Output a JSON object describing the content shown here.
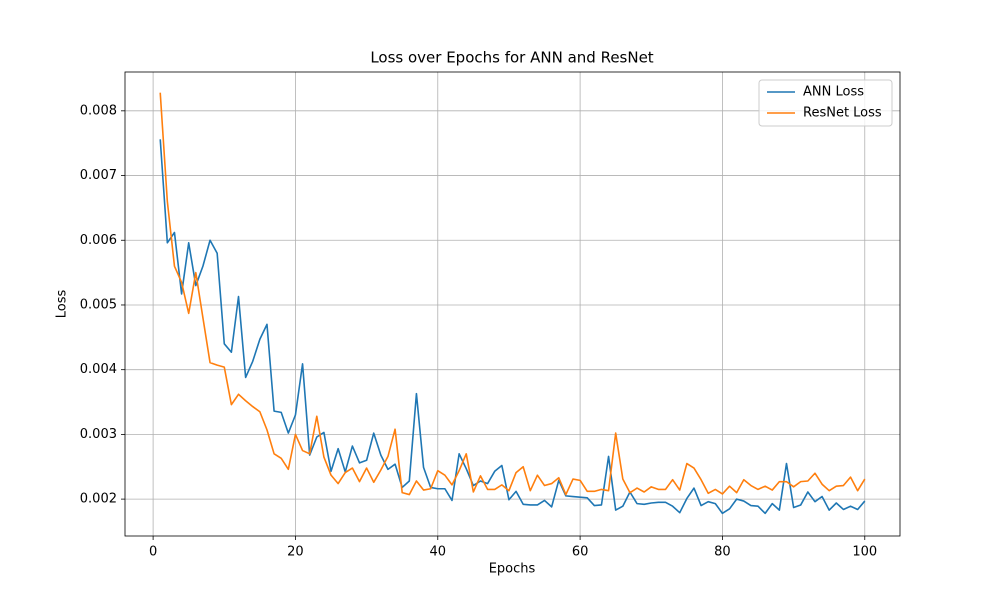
{
  "chart_data": {
    "type": "line",
    "title": "Loss over Epochs for ANN and ResNet",
    "x_label": "Epochs",
    "y_label": "Loss",
    "x": [
      1,
      2,
      3,
      4,
      5,
      6,
      7,
      8,
      9,
      10,
      11,
      12,
      13,
      14,
      15,
      16,
      17,
      18,
      19,
      20,
      21,
      22,
      23,
      24,
      25,
      26,
      27,
      28,
      29,
      30,
      31,
      32,
      33,
      34,
      35,
      36,
      37,
      38,
      39,
      40,
      41,
      42,
      43,
      44,
      45,
      46,
      47,
      48,
      49,
      50,
      51,
      52,
      53,
      54,
      55,
      56,
      57,
      58,
      59,
      60,
      61,
      62,
      63,
      64,
      65,
      66,
      67,
      68,
      69,
      70,
      71,
      72,
      73,
      74,
      75,
      76,
      77,
      78,
      79,
      80,
      81,
      82,
      83,
      84,
      85,
      86,
      87,
      88,
      89,
      90,
      91,
      92,
      93,
      94,
      95,
      96,
      97,
      98,
      99,
      100
    ],
    "series": [
      {
        "name": "ANN Loss",
        "color": "#1f77b4",
        "values": [
          0.00756,
          0.00596,
          0.00612,
          0.00517,
          0.00596,
          0.0053,
          0.0056,
          0.006,
          0.0058,
          0.0044,
          0.00427,
          0.00513,
          0.00388,
          0.00413,
          0.00447,
          0.0047,
          0.00336,
          0.00334,
          0.00302,
          0.0033,
          0.00409,
          0.00268,
          0.00296,
          0.00303,
          0.00243,
          0.00278,
          0.00242,
          0.00282,
          0.00256,
          0.0026,
          0.00302,
          0.00268,
          0.00246,
          0.00254,
          0.00218,
          0.00228,
          0.00363,
          0.00249,
          0.00218,
          0.00216,
          0.00216,
          0.00198,
          0.0027,
          0.00247,
          0.00221,
          0.00228,
          0.00224,
          0.00243,
          0.00252,
          0.00199,
          0.00212,
          0.00192,
          0.00191,
          0.00191,
          0.00198,
          0.00188,
          0.00229,
          0.00205,
          0.00204,
          0.00203,
          0.00202,
          0.0019,
          0.00191,
          0.00266,
          0.00183,
          0.00189,
          0.00211,
          0.00193,
          0.00192,
          0.00194,
          0.00195,
          0.00195,
          0.00189,
          0.00179,
          0.00201,
          0.00217,
          0.0019,
          0.00196,
          0.00193,
          0.00178,
          0.00185,
          0.002,
          0.00197,
          0.0019,
          0.00189,
          0.00178,
          0.00193,
          0.00183,
          0.00255,
          0.00187,
          0.00191,
          0.00211,
          0.00196,
          0.00204,
          0.00183,
          0.00194,
          0.00184,
          0.00189,
          0.00184,
          0.00197
        ]
      },
      {
        "name": "ResNet Loss",
        "color": "#ff7f0e",
        "values": [
          0.00828,
          0.0066,
          0.0056,
          0.00535,
          0.00487,
          0.0055,
          0.0048,
          0.00411,
          0.00407,
          0.00404,
          0.00346,
          0.00362,
          0.00352,
          0.00343,
          0.00335,
          0.00307,
          0.0027,
          0.00263,
          0.00246,
          0.003,
          0.00275,
          0.0027,
          0.00328,
          0.00265,
          0.00237,
          0.00224,
          0.00241,
          0.00248,
          0.00227,
          0.00248,
          0.00226,
          0.00245,
          0.00266,
          0.00308,
          0.0021,
          0.00207,
          0.00228,
          0.00214,
          0.00216,
          0.00244,
          0.00237,
          0.00222,
          0.00244,
          0.0027,
          0.00211,
          0.00236,
          0.00215,
          0.00215,
          0.00222,
          0.00213,
          0.00241,
          0.0025,
          0.00213,
          0.00237,
          0.00221,
          0.00224,
          0.00233,
          0.00207,
          0.00231,
          0.00229,
          0.00212,
          0.00212,
          0.00215,
          0.00213,
          0.00302,
          0.00231,
          0.0021,
          0.00217,
          0.00211,
          0.00219,
          0.00215,
          0.00215,
          0.0023,
          0.00214,
          0.00255,
          0.00248,
          0.0023,
          0.00209,
          0.00215,
          0.00208,
          0.0022,
          0.0021,
          0.0023,
          0.00221,
          0.00215,
          0.0022,
          0.00214,
          0.00227,
          0.00227,
          0.00219,
          0.00227,
          0.00228,
          0.0024,
          0.00223,
          0.00213,
          0.0022,
          0.00221,
          0.00234,
          0.00213,
          0.00231
        ]
      }
    ],
    "xlim": [
      -3.95,
      104.95
    ],
    "ylim": [
      0.00143,
      0.0086
    ],
    "xticks": [
      0,
      20,
      40,
      60,
      80,
      100
    ],
    "yticks": [
      0.002,
      0.003,
      0.004,
      0.005,
      0.006,
      0.007,
      0.008
    ],
    "grid": true,
    "legend": "upper-right"
  }
}
